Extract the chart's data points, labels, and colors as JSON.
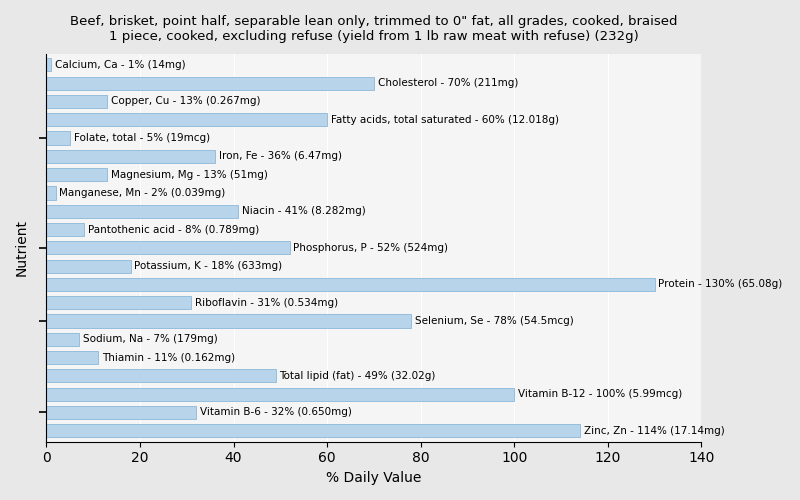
{
  "title": "Beef, brisket, point half, separable lean only, trimmed to 0\" fat, all grades, cooked, braised\n1 piece, cooked, excluding refuse (yield from 1 lb raw meat with refuse) (232g)",
  "xlabel": "% Daily Value",
  "ylabel": "Nutrient",
  "xlim": [
    0,
    140
  ],
  "xticks": [
    0,
    20,
    40,
    60,
    80,
    100,
    120,
    140
  ],
  "background_color": "#e8e8e8",
  "plot_bg_color": "#f5f5f5",
  "bar_color": "#b8d4ea",
  "bar_edge_color": "#7aafd4",
  "nutrients": [
    {
      "label": "Calcium, Ca - 1% (14mg)",
      "value": 1
    },
    {
      "label": "Cholesterol - 70% (211mg)",
      "value": 70
    },
    {
      "label": "Copper, Cu - 13% (0.267mg)",
      "value": 13
    },
    {
      "label": "Fatty acids, total saturated - 60% (12.018g)",
      "value": 60
    },
    {
      "label": "Folate, total - 5% (19mcg)",
      "value": 5
    },
    {
      "label": "Iron, Fe - 36% (6.47mg)",
      "value": 36
    },
    {
      "label": "Magnesium, Mg - 13% (51mg)",
      "value": 13
    },
    {
      "label": "Manganese, Mn - 2% (0.039mg)",
      "value": 2
    },
    {
      "label": "Niacin - 41% (8.282mg)",
      "value": 41
    },
    {
      "label": "Pantothenic acid - 8% (0.789mg)",
      "value": 8
    },
    {
      "label": "Phosphorus, P - 52% (524mg)",
      "value": 52
    },
    {
      "label": "Potassium, K - 18% (633mg)",
      "value": 18
    },
    {
      "label": "Protein - 130% (65.08g)",
      "value": 130
    },
    {
      "label": "Riboflavin - 31% (0.534mg)",
      "value": 31
    },
    {
      "label": "Selenium, Se - 78% (54.5mcg)",
      "value": 78
    },
    {
      "label": "Sodium, Na - 7% (179mg)",
      "value": 7
    },
    {
      "label": "Thiamin - 11% (0.162mg)",
      "value": 11
    },
    {
      "label": "Total lipid (fat) - 49% (32.02g)",
      "value": 49
    },
    {
      "label": "Vitamin B-12 - 100% (5.99mcg)",
      "value": 100
    },
    {
      "label": "Vitamin B-6 - 32% (0.650mg)",
      "value": 32
    },
    {
      "label": "Zinc, Zn - 114% (17.14mg)",
      "value": 114
    }
  ],
  "ytick_positions": [
    4,
    10,
    14,
    19
  ],
  "title_fontsize": 9.5,
  "label_fontsize": 7.5,
  "axis_fontsize": 10
}
